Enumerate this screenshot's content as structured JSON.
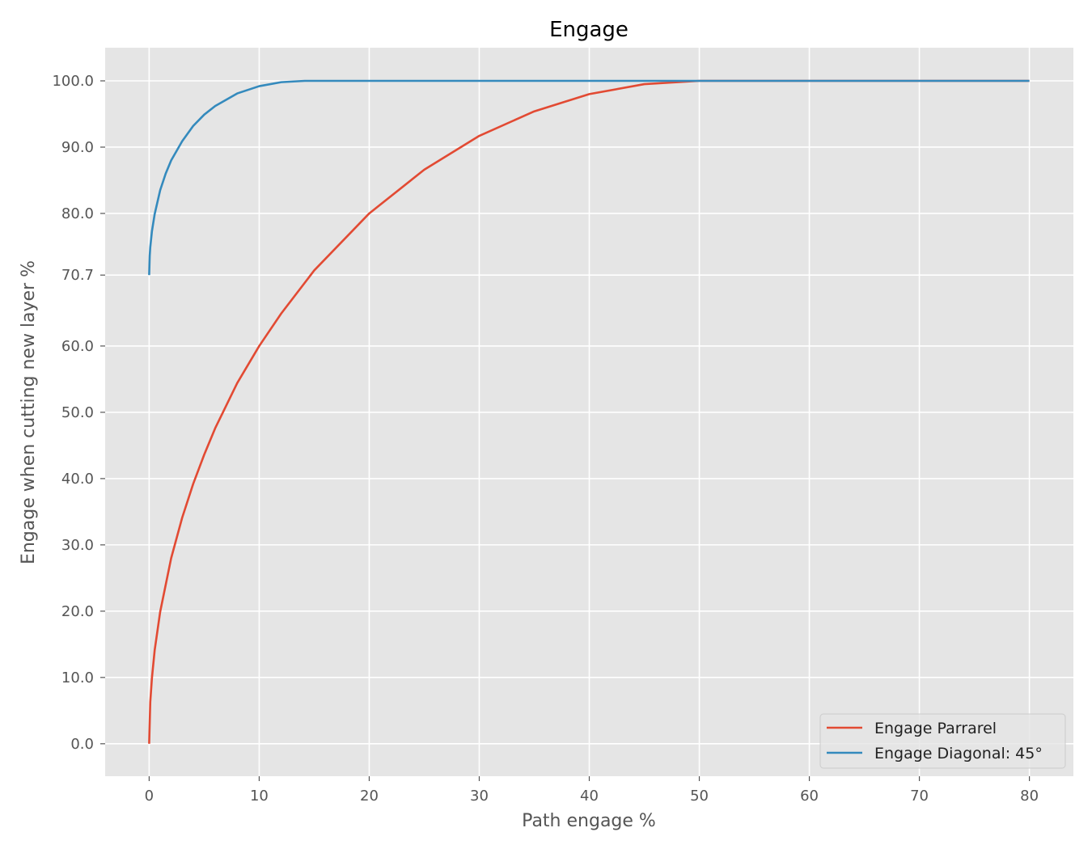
{
  "chart_data": {
    "type": "line",
    "title": "Engage",
    "xlabel": "Path engage %",
    "ylabel": "Engage when cutting new layer %",
    "xlim": [
      -4,
      84
    ],
    "ylim": [
      -4.9,
      105
    ],
    "xticks": [
      0,
      10,
      20,
      30,
      40,
      50,
      60,
      70,
      80
    ],
    "xtick_labels": [
      "0",
      "10",
      "20",
      "30",
      "40",
      "50",
      "60",
      "70",
      "80"
    ],
    "yticks": [
      0,
      10,
      20,
      30,
      40,
      50,
      60,
      70.7,
      80,
      90,
      100
    ],
    "ytick_labels": [
      "0.0",
      "10.0",
      "20.0",
      "30.0",
      "40.0",
      "50.0",
      "60.0",
      "70.7",
      "80.0",
      "90.0",
      "100.0"
    ],
    "grid": true,
    "legend_position": "lower-right",
    "colors": {
      "background": "#e5e5e5",
      "grid": "#ffffff"
    },
    "series": [
      {
        "name": "Engage Parrarel",
        "color": "#e24a33",
        "x": [
          0,
          0.1,
          0.25,
          0.5,
          1,
          2,
          3,
          4,
          5,
          6,
          8,
          10,
          12,
          15,
          20,
          25,
          30,
          35,
          40,
          45,
          50,
          60,
          70,
          80
        ],
        "y": [
          0,
          6.3,
          9.9,
          14.1,
          19.9,
          28.0,
          34.1,
          39.2,
          43.6,
          47.6,
          54.4,
          60.0,
          64.9,
          71.4,
          80.0,
          86.6,
          91.7,
          95.4,
          98.0,
          99.5,
          100,
          100,
          100,
          100
        ]
      },
      {
        "name": "Engage Diagonal: 45°",
        "color": "#348abd",
        "x": [
          0,
          0.05,
          0.1,
          0.25,
          0.5,
          1,
          1.5,
          2,
          3,
          4,
          5,
          6,
          8,
          10,
          12,
          14.14,
          20,
          30,
          40,
          50,
          60,
          70,
          80
        ],
        "y": [
          70.7,
          73.6,
          74.9,
          77.3,
          79.9,
          83.5,
          86.0,
          88.0,
          90.9,
          93.2,
          94.9,
          96.2,
          98.1,
          99.2,
          99.8,
          100,
          100,
          100,
          100,
          100,
          100,
          100,
          100
        ]
      }
    ]
  }
}
